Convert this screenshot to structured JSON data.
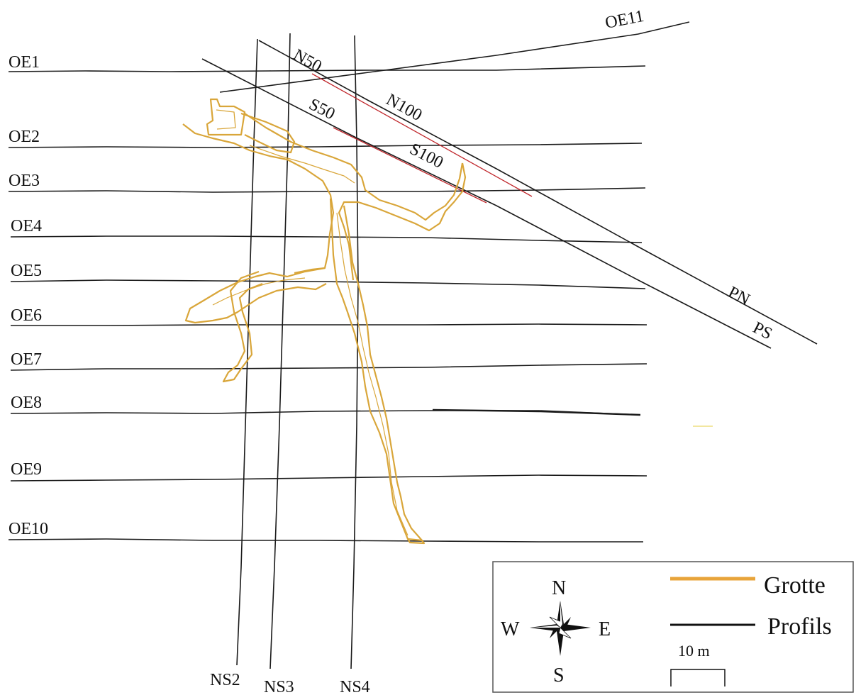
{
  "colors": {
    "profile": "#1a1a1a",
    "cave": "#d9a63a",
    "red": "#c0282d",
    "background": "#ffffff"
  },
  "labels": {
    "oe1": "OE1",
    "oe2": "OE2",
    "oe3": "OE3",
    "oe4": "OE4",
    "oe5": "OE5",
    "oe6": "OE6",
    "oe7": "OE7",
    "oe8": "OE8",
    "oe9": "OE9",
    "oe10": "OE10",
    "oe11": "OE11",
    "ns2": "NS2",
    "ns3": "NS3",
    "ns4": "NS4",
    "n50": "N50",
    "n100": "N100",
    "s50": "S50",
    "s100": "S100",
    "pn": "PN",
    "ps": "PS"
  },
  "legend": {
    "north": "N",
    "south": "S",
    "east": "E",
    "west": "W",
    "grotte_label": "Grotte",
    "profils_label": "Profils",
    "scale_label": "10 m"
  }
}
